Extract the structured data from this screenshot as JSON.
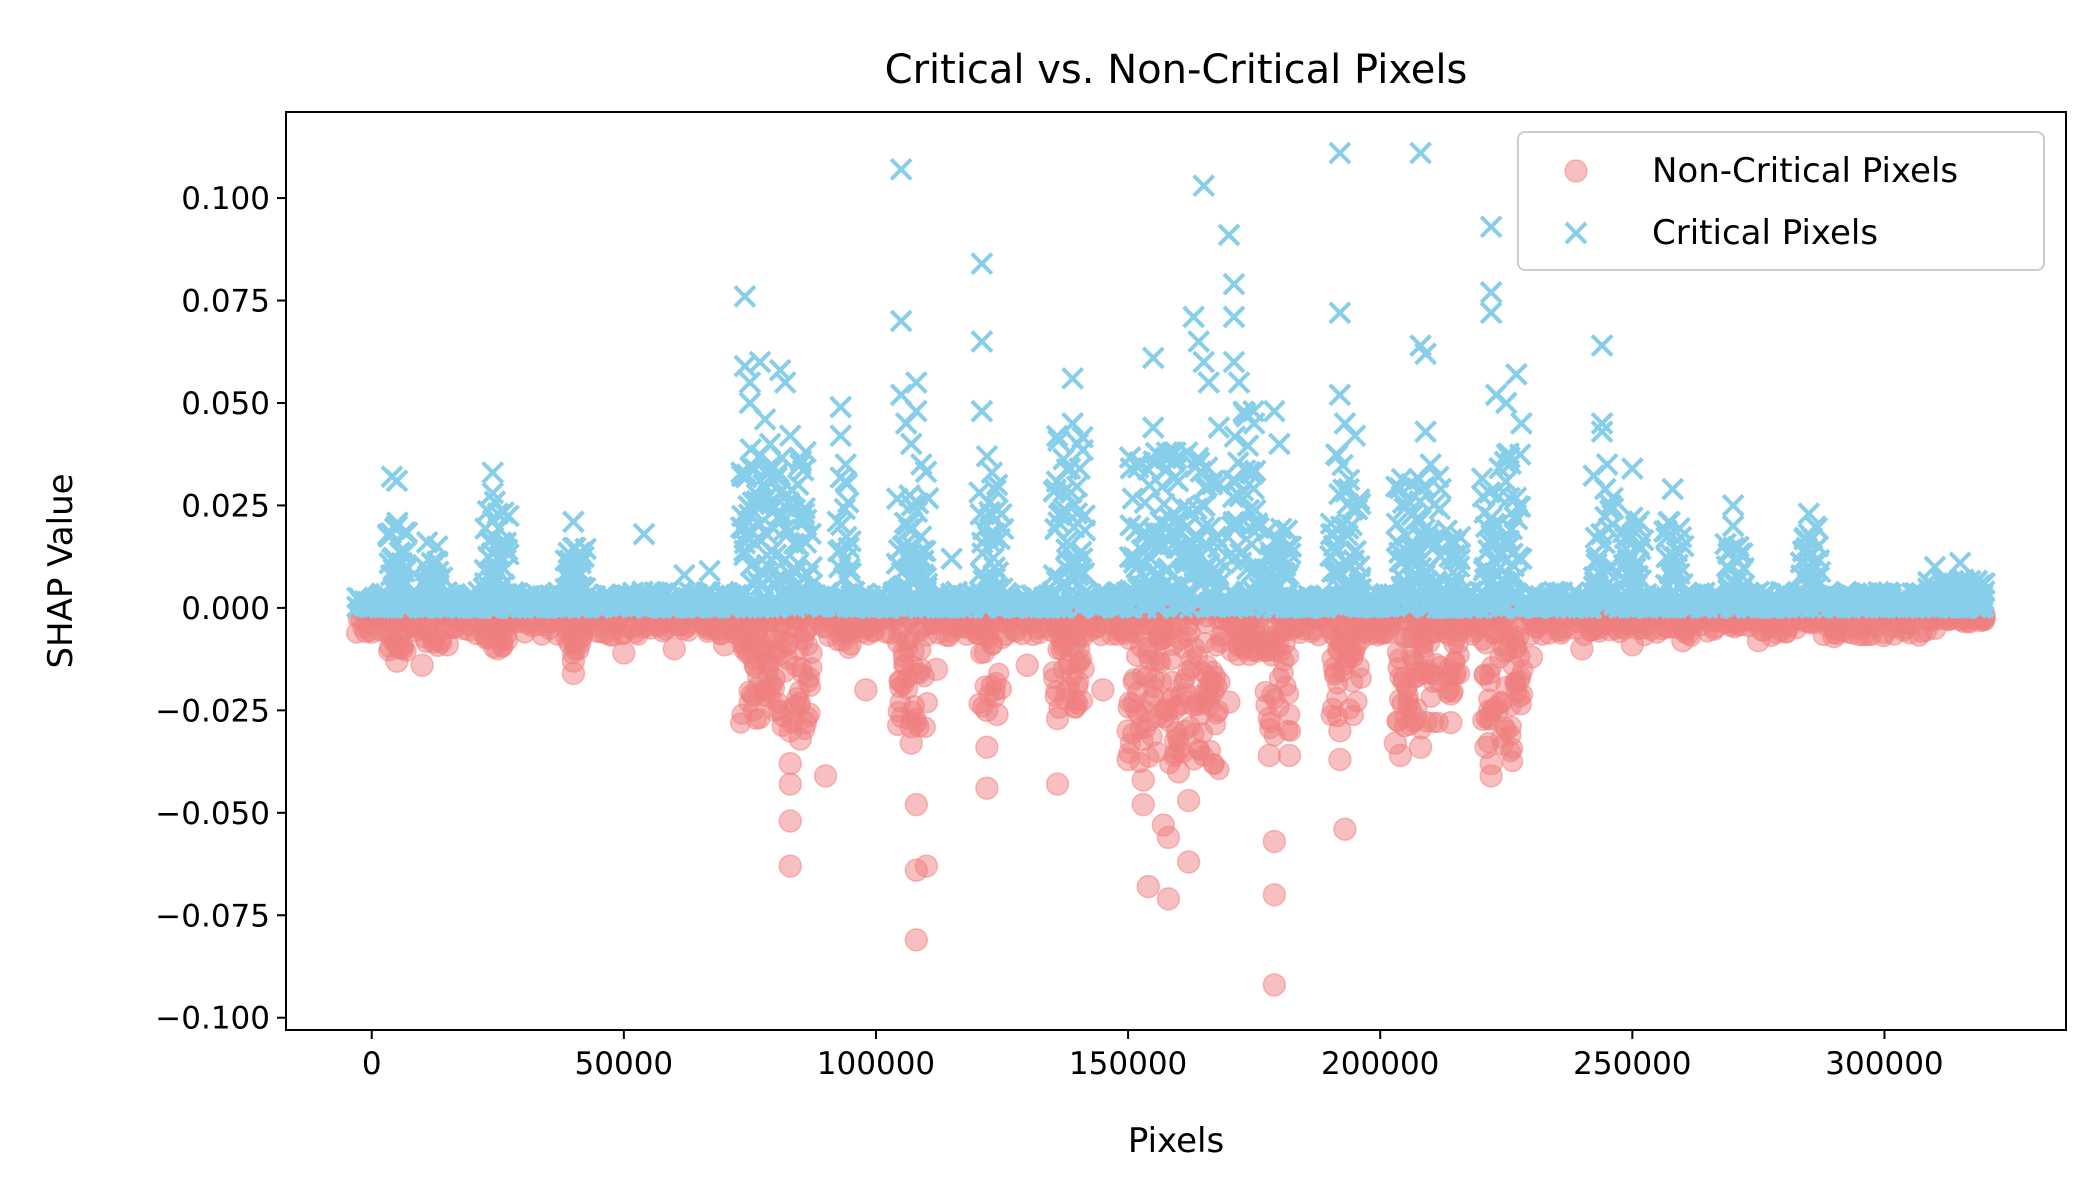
{
  "chart_data": {
    "type": "scatter",
    "title": "Critical vs. Non-Critical Pixels",
    "xlabel": "Pixels",
    "ylabel": "SHAP Value",
    "xlim": [
      -17000,
      336000
    ],
    "ylim": [
      -0.103,
      0.121
    ],
    "xticks": [
      0,
      50000,
      100000,
      150000,
      200000,
      250000,
      300000
    ],
    "xtick_labels": [
      "0",
      "50000",
      "100000",
      "150000",
      "200000",
      "250000",
      "300000"
    ],
    "yticks": [
      -0.1,
      -0.075,
      -0.05,
      -0.025,
      0.0,
      0.025,
      0.05,
      0.075,
      0.1
    ],
    "ytick_labels": [
      "−0.100",
      "−0.075",
      "−0.050",
      "−0.025",
      "0.000",
      "0.025",
      "0.050",
      "0.075",
      "0.100"
    ],
    "grid": false,
    "legend_position": "top-right",
    "series": [
      {
        "name": "Non-Critical Pixels",
        "marker": "circle",
        "color": "#F08080",
        "points": [
          [
            5000,
            -0.013
          ],
          [
            10000,
            -0.014
          ],
          [
            15000,
            -0.009
          ],
          [
            25000,
            -0.01
          ],
          [
            40000,
            -0.016
          ],
          [
            40000,
            -0.013
          ],
          [
            50000,
            -0.011
          ],
          [
            60000,
            -0.01
          ],
          [
            70000,
            -0.009
          ],
          [
            80000,
            -0.025
          ],
          [
            83000,
            -0.03
          ],
          [
            83000,
            -0.038
          ],
          [
            83000,
            -0.043
          ],
          [
            83000,
            -0.052
          ],
          [
            83000,
            -0.063
          ],
          [
            85000,
            -0.032
          ],
          [
            86000,
            -0.028
          ],
          [
            90000,
            -0.041
          ],
          [
            98000,
            -0.02
          ],
          [
            105000,
            -0.018
          ],
          [
            107000,
            -0.029
          ],
          [
            107000,
            -0.033
          ],
          [
            108000,
            -0.048
          ],
          [
            108000,
            -0.064
          ],
          [
            108000,
            -0.081
          ],
          [
            110000,
            -0.063
          ],
          [
            112000,
            -0.015
          ],
          [
            122000,
            -0.025
          ],
          [
            122000,
            -0.034
          ],
          [
            122000,
            -0.044
          ],
          [
            124000,
            -0.026
          ],
          [
            130000,
            -0.014
          ],
          [
            136000,
            -0.027
          ],
          [
            136000,
            -0.043
          ],
          [
            140000,
            -0.018
          ],
          [
            145000,
            -0.02
          ],
          [
            150000,
            -0.03
          ],
          [
            150000,
            -0.037
          ],
          [
            153000,
            -0.042
          ],
          [
            153000,
            -0.048
          ],
          [
            154000,
            -0.068
          ],
          [
            157000,
            -0.053
          ],
          [
            158000,
            -0.056
          ],
          [
            158000,
            -0.071
          ],
          [
            160000,
            -0.04
          ],
          [
            162000,
            -0.047
          ],
          [
            162000,
            -0.062
          ],
          [
            170000,
            -0.023
          ],
          [
            178000,
            -0.027
          ],
          [
            178000,
            -0.036
          ],
          [
            179000,
            -0.057
          ],
          [
            179000,
            -0.07
          ],
          [
            179000,
            -0.092
          ],
          [
            182000,
            -0.036
          ],
          [
            192000,
            -0.03
          ],
          [
            192000,
            -0.037
          ],
          [
            193000,
            -0.054
          ],
          [
            203000,
            -0.033
          ],
          [
            204000,
            -0.036
          ],
          [
            207000,
            -0.027
          ],
          [
            208000,
            -0.034
          ],
          [
            214000,
            -0.021
          ],
          [
            214000,
            -0.028
          ],
          [
            221000,
            -0.034
          ],
          [
            222000,
            -0.038
          ],
          [
            222000,
            -0.041
          ],
          [
            230000,
            -0.012
          ],
          [
            240000,
            -0.01
          ],
          [
            250000,
            -0.009
          ],
          [
            260000,
            -0.008
          ],
          [
            275000,
            -0.008
          ],
          [
            290000,
            -0.007
          ],
          [
            300000,
            -0.006
          ],
          [
            310000,
            -0.005
          ]
        ]
      },
      {
        "name": "Critical Pixels",
        "marker": "x",
        "color": "#87CEEB",
        "points": [
          [
            4000,
            0.032
          ],
          [
            5000,
            0.031
          ],
          [
            5000,
            0.02
          ],
          [
            11000,
            0.016
          ],
          [
            13000,
            0.015
          ],
          [
            24000,
            0.033
          ],
          [
            24000,
            0.028
          ],
          [
            25000,
            0.023
          ],
          [
            40000,
            0.021
          ],
          [
            54000,
            0.018
          ],
          [
            62000,
            0.008
          ],
          [
            67000,
            0.009
          ],
          [
            74000,
            0.076
          ],
          [
            74000,
            0.059
          ],
          [
            75000,
            0.055
          ],
          [
            75000,
            0.05
          ],
          [
            77000,
            0.06
          ],
          [
            78000,
            0.046
          ],
          [
            79000,
            0.04
          ],
          [
            81000,
            0.058
          ],
          [
            82000,
            0.055
          ],
          [
            83000,
            0.042
          ],
          [
            85000,
            0.035
          ],
          [
            93000,
            0.049
          ],
          [
            93000,
            0.042
          ],
          [
            94000,
            0.035
          ],
          [
            105000,
            0.107
          ],
          [
            105000,
            0.07
          ],
          [
            105000,
            0.052
          ],
          [
            106000,
            0.045
          ],
          [
            107000,
            0.04
          ],
          [
            108000,
            0.055
          ],
          [
            108000,
            0.048
          ],
          [
            109000,
            0.035
          ],
          [
            115000,
            0.012
          ],
          [
            121000,
            0.084
          ],
          [
            121000,
            0.065
          ],
          [
            121000,
            0.048
          ],
          [
            122000,
            0.037
          ],
          [
            123000,
            0.033
          ],
          [
            124000,
            0.03
          ],
          [
            139000,
            0.056
          ],
          [
            139000,
            0.045
          ],
          [
            140000,
            0.04
          ],
          [
            155000,
            0.061
          ],
          [
            155000,
            0.044
          ],
          [
            163000,
            0.071
          ],
          [
            164000,
            0.065
          ],
          [
            165000,
            0.103
          ],
          [
            165000,
            0.06
          ],
          [
            166000,
            0.055
          ],
          [
            168000,
            0.044
          ],
          [
            170000,
            0.091
          ],
          [
            171000,
            0.079
          ],
          [
            171000,
            0.071
          ],
          [
            171000,
            0.06
          ],
          [
            172000,
            0.055
          ],
          [
            175000,
            0.045
          ],
          [
            179000,
            0.048
          ],
          [
            180000,
            0.04
          ],
          [
            192000,
            0.111
          ],
          [
            192000,
            0.072
          ],
          [
            192000,
            0.052
          ],
          [
            193000,
            0.045
          ],
          [
            195000,
            0.042
          ],
          [
            208000,
            0.111
          ],
          [
            208000,
            0.064
          ],
          [
            209000,
            0.062
          ],
          [
            209000,
            0.043
          ],
          [
            210000,
            0.035
          ],
          [
            212000,
            0.029
          ],
          [
            222000,
            0.093
          ],
          [
            222000,
            0.077
          ],
          [
            222000,
            0.072
          ],
          [
            223000,
            0.052
          ],
          [
            225000,
            0.05
          ],
          [
            227000,
            0.057
          ],
          [
            228000,
            0.045
          ],
          [
            244000,
            0.064
          ],
          [
            244000,
            0.045
          ],
          [
            244000,
            0.043
          ],
          [
            245000,
            0.035
          ],
          [
            250000,
            0.034
          ],
          [
            250000,
            0.022
          ],
          [
            258000,
            0.029
          ],
          [
            270000,
            0.025
          ],
          [
            270000,
            0.02
          ],
          [
            285000,
            0.023
          ],
          [
            285000,
            0.018
          ],
          [
            310000,
            0.01
          ],
          [
            315000,
            0.011
          ],
          [
            318000,
            0.006
          ]
        ]
      }
    ]
  }
}
